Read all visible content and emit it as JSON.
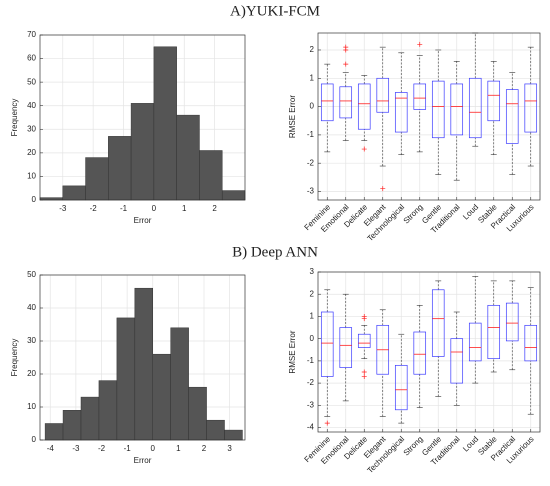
{
  "headings": [
    "A)YUKI-FCM",
    "B) Deep ANN"
  ],
  "chart_data": [
    {
      "type": "histogram",
      "xlabel": "Error",
      "ylabel": "Frequency",
      "color": "#555555",
      "grid": true,
      "bins": [
        -3.75,
        -3.0,
        -2.25,
        -1.5,
        -0.75,
        0,
        0.75,
        1.5,
        2.25,
        3.0
      ],
      "values": [
        1,
        6,
        18,
        27,
        41,
        65,
        36,
        21,
        4
      ],
      "xlim": [
        -3.75,
        3.0
      ],
      "xticks": [
        -3,
        -2,
        -1,
        0,
        1,
        2
      ],
      "ylim": [
        0,
        70
      ],
      "yticks": [
        0,
        10,
        20,
        30,
        40,
        50,
        60,
        70
      ]
    },
    {
      "type": "box",
      "ylabel": "RMSE Error",
      "color": "#3b3bff",
      "median_color": "#ff2020",
      "grid": true,
      "categories": [
        "Feminine",
        "Emotional",
        "Delicate",
        "Elegant",
        "Technological",
        "Strong",
        "Gentle",
        "Traditional",
        "Loud",
        "Stable",
        "Practical",
        "Luxurious"
      ],
      "boxes": [
        {
          "min": -1.6,
          "q1": -0.5,
          "median": 0.2,
          "q3": 0.8,
          "max": 1.5,
          "outliers": []
        },
        {
          "min": -1.2,
          "q1": -0.4,
          "median": 0.2,
          "q3": 0.7,
          "max": 1.2,
          "outliers": [
            2.1,
            2.0,
            1.5
          ]
        },
        {
          "min": -1.2,
          "q1": -0.8,
          "median": 0.1,
          "q3": 0.8,
          "max": 1.1,
          "outliers": [
            -1.5
          ]
        },
        {
          "min": -2.1,
          "q1": -0.2,
          "median": 0.2,
          "q3": 1.0,
          "max": 2.1,
          "outliers": [
            -2.9
          ]
        },
        {
          "min": -1.7,
          "q1": -0.9,
          "median": 0.3,
          "q3": 0.5,
          "max": 1.9,
          "outliers": []
        },
        {
          "min": -1.6,
          "q1": -0.1,
          "median": 0.3,
          "q3": 0.8,
          "max": 1.8,
          "outliers": [
            2.2
          ]
        },
        {
          "min": -2.4,
          "q1": -1.1,
          "median": 0.0,
          "q3": 0.9,
          "max": 2.0,
          "outliers": []
        },
        {
          "min": -2.6,
          "q1": -1.0,
          "median": 0.0,
          "q3": 0.8,
          "max": 1.6,
          "outliers": []
        },
        {
          "min": -1.4,
          "q1": -1.1,
          "median": -0.2,
          "q3": 1.0,
          "max": 2.6,
          "outliers": []
        },
        {
          "min": -1.7,
          "q1": -0.5,
          "median": 0.4,
          "q3": 0.9,
          "max": 1.6,
          "outliers": []
        },
        {
          "min": -2.4,
          "q1": -1.3,
          "median": 0.1,
          "q3": 0.6,
          "max": 1.2,
          "outliers": []
        },
        {
          "min": -2.1,
          "q1": -0.9,
          "median": 0.2,
          "q3": 0.8,
          "max": 2.1,
          "outliers": []
        }
      ],
      "ylim": [
        -3.3,
        2.6
      ],
      "yticks": [
        -3,
        -2,
        -1,
        0,
        1,
        2
      ]
    },
    {
      "type": "histogram",
      "xlabel": "Error",
      "ylabel": "Frequency",
      "color": "#555555",
      "grid": true,
      "bins": [
        -4.2,
        -3.5,
        -2.8,
        -2.1,
        -1.4,
        -0.7,
        0,
        0.7,
        1.4,
        2.1,
        2.8,
        3.5
      ],
      "values": [
        5,
        9,
        13,
        18,
        37,
        46,
        26,
        34,
        16,
        6,
        3
      ],
      "xlim": [
        -4.4,
        3.6
      ],
      "xticks": [
        -4,
        -3,
        -2,
        -1,
        0,
        1,
        2,
        3
      ],
      "ylim": [
        0,
        50
      ],
      "yticks": [
        0,
        10,
        20,
        30,
        40,
        50
      ]
    },
    {
      "type": "box",
      "ylabel": "RMSE Error",
      "color": "#3b3bff",
      "median_color": "#ff2020",
      "grid": true,
      "categories": [
        "Feminine",
        "Emotional",
        "Delicate",
        "Elegant",
        "Technological",
        "Strong",
        "Gentle",
        "Traditional",
        "Loud",
        "Stable",
        "Practical",
        "Luxurious"
      ],
      "boxes": [
        {
          "min": -3.5,
          "q1": -1.7,
          "median": -0.2,
          "q3": 1.2,
          "max": 2.2,
          "outliers": [
            -3.8
          ]
        },
        {
          "min": -2.8,
          "q1": -1.3,
          "median": -0.3,
          "q3": 0.5,
          "max": 2.0,
          "outliers": []
        },
        {
          "min": -0.9,
          "q1": -0.4,
          "median": -0.2,
          "q3": 0.2,
          "max": 0.6,
          "outliers": [
            1.0,
            0.9,
            -1.5,
            -1.7
          ]
        },
        {
          "min": -3.5,
          "q1": -1.6,
          "median": -0.5,
          "q3": 0.6,
          "max": 1.3,
          "outliers": []
        },
        {
          "min": -3.8,
          "q1": -3.2,
          "median": -2.3,
          "q3": -1.2,
          "max": 0.2,
          "outliers": []
        },
        {
          "min": -3.1,
          "q1": -1.6,
          "median": -0.7,
          "q3": 0.3,
          "max": 1.5,
          "outliers": []
        },
        {
          "min": -2.6,
          "q1": -0.8,
          "median": 0.9,
          "q3": 2.2,
          "max": 2.6,
          "outliers": []
        },
        {
          "min": -3.0,
          "q1": -2.0,
          "median": -0.6,
          "q3": 0.0,
          "max": 1.2,
          "outliers": []
        },
        {
          "min": -2.0,
          "q1": -1.0,
          "median": -0.4,
          "q3": 0.7,
          "max": 2.8,
          "outliers": []
        },
        {
          "min": -1.5,
          "q1": -0.9,
          "median": 0.5,
          "q3": 1.5,
          "max": 2.6,
          "outliers": []
        },
        {
          "min": -1.4,
          "q1": -0.1,
          "median": 0.7,
          "q3": 1.6,
          "max": 2.6,
          "outliers": []
        },
        {
          "min": -3.4,
          "q1": -1.0,
          "median": -0.4,
          "q3": 0.6,
          "max": 2.3,
          "outliers": []
        }
      ],
      "ylim": [
        -4.2,
        3.0
      ],
      "yticks": [
        -4,
        -3,
        -2,
        -1,
        0,
        1,
        2,
        3
      ]
    }
  ]
}
